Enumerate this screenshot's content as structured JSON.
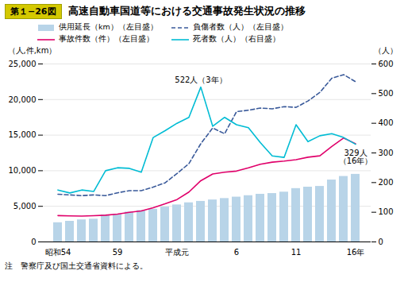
{
  "chart_data": {
    "type": "bar",
    "title_prefix": "第１−26図",
    "title": "高速自動車国道等における交通事故発生状況の推移",
    "caption": "注　警察庁及び国土交通省資料による。",
    "categories": [
      "昭和54",
      null,
      null,
      null,
      null,
      "59",
      null,
      null,
      null,
      null,
      "平成元",
      null,
      null,
      null,
      null,
      "6",
      null,
      null,
      null,
      null,
      "11",
      null,
      null,
      null,
      null,
      "16年"
    ],
    "ylabel": "（人,件,km）",
    "y2label": "（人）",
    "ylim": [
      0,
      25000
    ],
    "yticks": [
      0,
      {
        "value": 5000,
        "label": "5,000"
      },
      {
        "value": 10000,
        "label": "10,000"
      },
      {
        "value": 15000,
        "label": "15,000"
      },
      {
        "value": 20000,
        "label": "20,000"
      },
      {
        "value": 25000,
        "label": "25,000"
      }
    ],
    "y2lim": [
      0,
      600
    ],
    "y2ticks": [
      0,
      100,
      200,
      300,
      400,
      500,
      600
    ],
    "grid": true,
    "legend": "top",
    "series": [
      {
        "name": "供用延長（km）（左目盛）",
        "type": "bar",
        "color": "#b8d4e8",
        "values": [
          2700,
          2900,
          3100,
          3200,
          3800,
          3900,
          4200,
          4400,
          4600,
          4900,
          5200,
          5500,
          5700,
          5900,
          6100,
          6300,
          6500,
          6700,
          6800,
          7000,
          7500,
          7700,
          7800,
          8700,
          9200,
          9500
        ]
      },
      {
        "name": "負傷者数（人）（左目盛）",
        "type": "line",
        "line_style": "dashed",
        "color": "#3a5a9a",
        "values": [
          6700,
          6600,
          6500,
          6600,
          6500,
          6900,
          7200,
          7200,
          7700,
          8300,
          9600,
          11000,
          13800,
          16000,
          15200,
          18300,
          18500,
          18800,
          18700,
          19000,
          18900,
          19800,
          21000,
          23000,
          23500,
          22500
        ]
      },
      {
        "name": "事故件数（件）（左目盛）",
        "type": "line",
        "line_style": "solid",
        "color": "#e0006a",
        "values": [
          3700,
          3650,
          3620,
          3680,
          3750,
          3900,
          4150,
          4350,
          4800,
          5350,
          5950,
          7000,
          8600,
          9550,
          9800,
          9950,
          10400,
          10900,
          11200,
          11350,
          11550,
          11900,
          12100,
          13400,
          14600,
          13800
        ]
      },
      {
        "name": "死者数（人）（右目盛）",
        "type": "line",
        "line_style": "solid",
        "color": "#00bcd4",
        "axis": "y2",
        "values": [
          175,
          165,
          175,
          170,
          240,
          250,
          248,
          235,
          352,
          375,
          400,
          420,
          522,
          390,
          420,
          395,
          385,
          335,
          290,
          285,
          395,
          338,
          358,
          365,
          352,
          329
        ]
      }
    ],
    "annotations": [
      {
        "text": "522人（3年）",
        "x": 12,
        "y": 522,
        "axis": "y2"
      },
      {
        "text": "329人\n（16年）",
        "x": 25,
        "y": 329,
        "axis": "y2"
      }
    ]
  }
}
